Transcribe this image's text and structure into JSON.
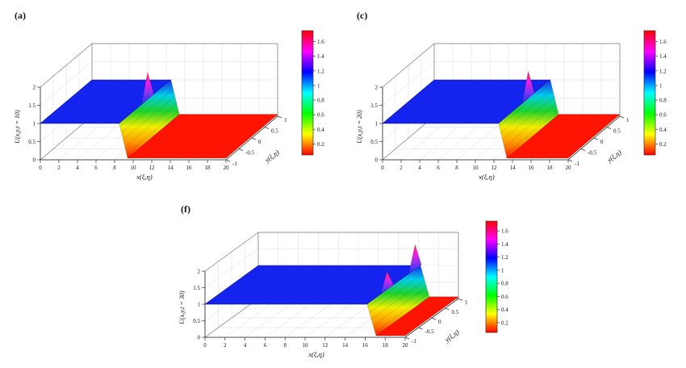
{
  "colors": {
    "background": "#ffffff",
    "grid": "#d9d9d9",
    "box_edge": "#777777",
    "axis_edge": "#333333",
    "text": "#111111",
    "plateau_high": "#1523ef",
    "plateau_high_edge": "#0b139e",
    "plateau_low": "#fe1400",
    "plateau_low_edge": "#b80d00"
  },
  "colormap_stops": [
    "#ff0000",
    "#ffff00",
    "#00ff00",
    "#00ffff",
    "#0000ff",
    "#ff00ff",
    "#ff0000"
  ],
  "wall_gradient_top_to_bottom": [
    "#1c2cf0",
    "#00cfe8",
    "#1ed32b",
    "#f2ee00",
    "#ff9800",
    "#ff1e00"
  ],
  "spike_gradient_top_to_bottom": [
    "#ff2450",
    "#ee1fe0",
    "#7a35f0",
    "#2030ee"
  ],
  "chart_data": [
    {
      "type": "surface",
      "label": "(a)",
      "xlabel": "x(ξ,η)",
      "ylabel": "y(ξ,η)",
      "zlabel": "U(x,y,t = 10)",
      "xlim": [
        0,
        20
      ],
      "ylim": [
        -1,
        1
      ],
      "zlim": [
        0,
        2
      ],
      "x_ticks": [
        0,
        2,
        4,
        6,
        8,
        10,
        12,
        14,
        16,
        18,
        20
      ],
      "y_ticks": [
        -1,
        -0.5,
        0,
        0.5,
        1
      ],
      "z_ticks": [
        0,
        0.5,
        1,
        1.5,
        2
      ],
      "surface": {
        "left_plateau_level": 1,
        "right_plateau_level": 0.05,
        "front_x": 8.5,
        "peaks": [
          {
            "y": 0.1,
            "z": 1.75
          }
        ]
      },
      "colorbar": {
        "range": [
          0.05,
          1.75
        ],
        "ticks": [
          0.2,
          0.4,
          0.6,
          0.8,
          1,
          1.2,
          1.4,
          1.6
        ],
        "colormap": "hsv"
      }
    },
    {
      "type": "surface",
      "label": "(c)",
      "xlabel": "x(ξ,η)",
      "ylabel": "y(ξ,η)",
      "zlabel": "U(x,y,t = 20)",
      "xlim": [
        0,
        20
      ],
      "ylim": [
        -1,
        1
      ],
      "zlim": [
        0,
        2
      ],
      "x_ticks": [
        0,
        2,
        4,
        6,
        8,
        10,
        12,
        14,
        16,
        18,
        20
      ],
      "y_ticks": [
        -1,
        -0.5,
        0,
        0.5,
        1
      ],
      "z_ticks": [
        0,
        0.5,
        1,
        1.5,
        2
      ],
      "surface": {
        "left_plateau_level": 1,
        "right_plateau_level": 0.05,
        "front_x": 12.5,
        "peaks": [
          {
            "y": 0.15,
            "z": 1.75
          }
        ]
      },
      "colorbar": {
        "range": [
          0.05,
          1.75
        ],
        "ticks": [
          0.2,
          0.4,
          0.6,
          0.8,
          1,
          1.2,
          1.4,
          1.6
        ],
        "colormap": "hsv"
      }
    },
    {
      "type": "surface",
      "label": "(f)",
      "xlabel": "x(ξ,η)",
      "ylabel": "y(ξ,η)",
      "zlabel": "U(x,y,t = 30)",
      "xlim": [
        0,
        20
      ],
      "ylim": [
        -1,
        1
      ],
      "zlim": [
        0,
        2
      ],
      "x_ticks": [
        0,
        2,
        4,
        6,
        8,
        10,
        12,
        14,
        16,
        18,
        20
      ],
      "y_ticks": [
        -1,
        -0.5,
        0,
        0.5,
        1
      ],
      "z_ticks": [
        0,
        0.5,
        1,
        1.5,
        2
      ],
      "surface": {
        "left_plateau_level": 1,
        "right_plateau_level": 0.05,
        "front_x": 16.2,
        "peaks": [
          {
            "y": -0.25,
            "z": 1.55
          },
          {
            "y": 0.8,
            "z": 1.75
          }
        ]
      },
      "colorbar": {
        "range": [
          0.05,
          1.75
        ],
        "ticks": [
          0.2,
          0.4,
          0.6,
          0.8,
          1,
          1.2,
          1.4,
          1.6
        ],
        "colormap": "hsv"
      }
    }
  ]
}
